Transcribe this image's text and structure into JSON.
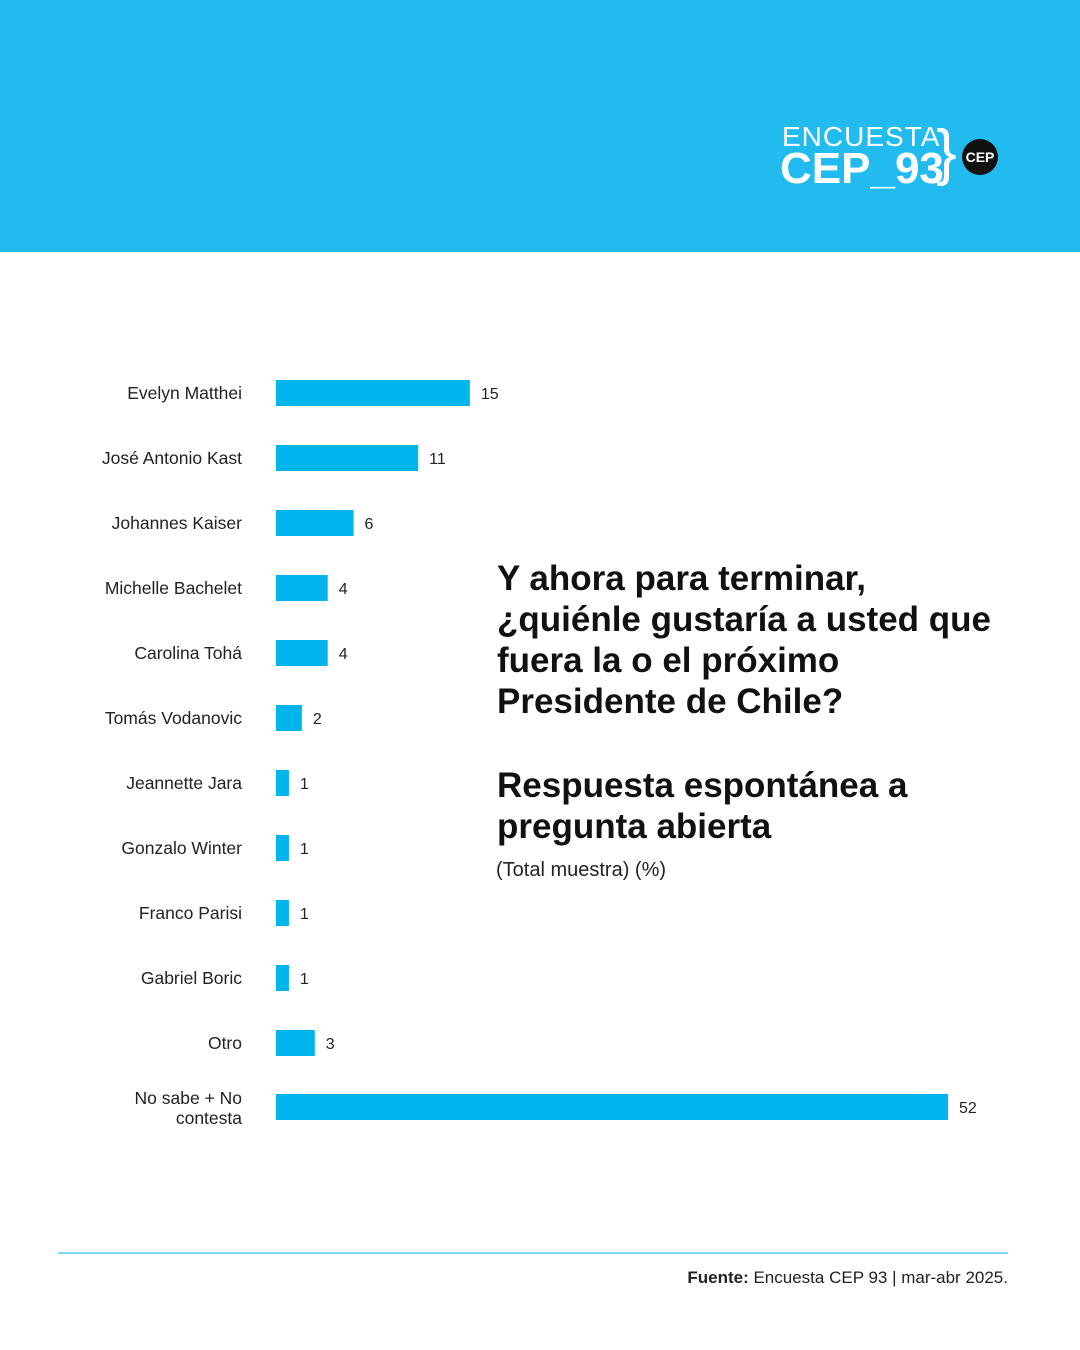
{
  "header": {
    "logo_line1": "ENCUESTA",
    "logo_line2": "CEP_93",
    "logo_badge": "CEP",
    "logo_brace": "}"
  },
  "colors": {
    "accent": "#22bbef",
    "bar": "#00b4ec",
    "text": "#111111"
  },
  "question": "Y ahora para terminar, ¿quiénle gustaría a usted que fuera la o el próximo Presidente de Chile?",
  "subtitle": "Respuesta espontánea a pregunta abierta",
  "sample_note": "(Total muestra) (%)",
  "footer": {
    "source_label": "Fuente:",
    "source_text": "Encuesta CEP 93 | mar-abr 2025."
  },
  "chart_data": {
    "type": "bar",
    "orientation": "horizontal",
    "categories": [
      "Evelyn Matthei",
      "José Antonio Kast",
      "Johannes Kaiser",
      "Michelle Bachelet",
      "Carolina Tohá",
      "Tomás Vodanovic",
      "Jeannette Jara",
      "Gonzalo Winter",
      "Franco Parisi",
      "Gabriel Boric",
      "Otro",
      "No sabe + No contesta"
    ],
    "values": [
      15,
      11,
      6,
      4,
      4,
      2,
      1,
      1,
      1,
      1,
      3,
      52
    ],
    "title": "",
    "xlabel": "",
    "ylabel": "",
    "xlim": [
      0,
      52
    ],
    "grid": false
  }
}
